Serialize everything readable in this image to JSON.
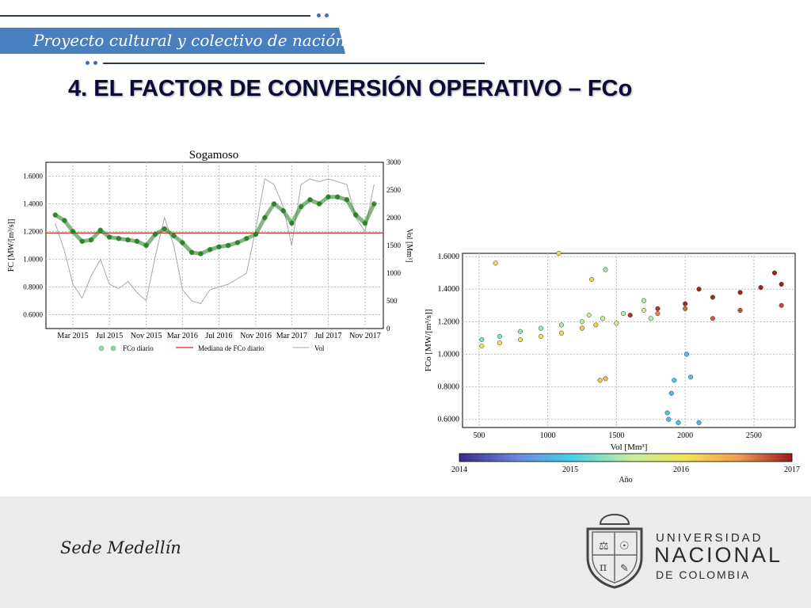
{
  "header": {
    "banner_text": "Proyecto cultural y colectivo de nación",
    "title": "4. EL FACTOR DE CONVERSIÓN OPERATIVO – FCo"
  },
  "footer": {
    "sede": "Sede Medellín",
    "university_line1": "UNIVERSIDAD",
    "university_line2": "NACIONAL",
    "university_line3": "DE COLOMBIA"
  },
  "colors": {
    "banner": "#4a7fbf",
    "title": "#0b0b3a",
    "fco_points": "#1f7a1f",
    "median_line": "#d62020",
    "vol_line": "#a8a8a8"
  },
  "chart_data": [
    {
      "type": "line",
      "title": "Sogamoso",
      "ylabel": "FC [MW/[m³/s]]",
      "y2label": "Vol [Mm³]",
      "ylim": [
        0.5,
        1.7
      ],
      "y2lim": [
        0,
        3000
      ],
      "yticks": [
        "0.6000",
        "0.8000",
        "1.0000",
        "1.2000",
        "1.4000",
        "1.6000"
      ],
      "y2ticks": [
        "0",
        "500",
        "1000",
        "1500",
        "2000",
        "2500",
        "3000"
      ],
      "xticks": [
        "Mar 2015",
        "Jul 2015",
        "Nov 2015",
        "Mar 2016",
        "Jul 2016",
        "Nov 2016",
        "Mar 2017",
        "Jul 2017",
        "Nov 2017"
      ],
      "x_start": "2014-12",
      "x_end": "2018-01",
      "legend": [
        "FCo diario",
        "Mediana de FCo diario",
        "Vol"
      ],
      "legend_position": "bottom",
      "grid": true,
      "median": 1.19,
      "series": [
        {
          "name": "FCo diario",
          "x": [
            "2015-01",
            "2015-02",
            "2015-03",
            "2015-04",
            "2015-05",
            "2015-06",
            "2015-07",
            "2015-08",
            "2015-09",
            "2015-10",
            "2015-11",
            "2015-12",
            "2016-01",
            "2016-02",
            "2016-03",
            "2016-04",
            "2016-05",
            "2016-06",
            "2016-07",
            "2016-08",
            "2016-09",
            "2016-10",
            "2016-11",
            "2016-12",
            "2017-01",
            "2017-02",
            "2017-03",
            "2017-04",
            "2017-05",
            "2017-06",
            "2017-07",
            "2017-08",
            "2017-09",
            "2017-10",
            "2017-11",
            "2017-12"
          ],
          "values": [
            1.32,
            1.28,
            1.2,
            1.13,
            1.14,
            1.21,
            1.16,
            1.15,
            1.14,
            1.13,
            1.1,
            1.18,
            1.22,
            1.17,
            1.12,
            1.05,
            1.04,
            1.07,
            1.09,
            1.1,
            1.12,
            1.15,
            1.18,
            1.3,
            1.4,
            1.35,
            1.26,
            1.38,
            1.43,
            1.4,
            1.45,
            1.45,
            1.43,
            1.32,
            1.26,
            1.4
          ]
        },
        {
          "name": "Vol",
          "x": [
            "2015-01",
            "2015-02",
            "2015-03",
            "2015-04",
            "2015-05",
            "2015-06",
            "2015-07",
            "2015-08",
            "2015-09",
            "2015-10",
            "2015-11",
            "2015-12",
            "2016-01",
            "2016-02",
            "2016-03",
            "2016-04",
            "2016-05",
            "2016-06",
            "2016-07",
            "2016-08",
            "2016-09",
            "2016-10",
            "2016-11",
            "2016-12",
            "2017-01",
            "2017-02",
            "2017-03",
            "2017-04",
            "2017-05",
            "2017-06",
            "2017-07",
            "2017-08",
            "2017-09",
            "2017-10",
            "2017-11",
            "2017-12"
          ],
          "values": [
            1900,
            1400,
            800,
            550,
            950,
            1250,
            800,
            720,
            850,
            650,
            500,
            1300,
            2000,
            1500,
            700,
            500,
            450,
            700,
            750,
            800,
            900,
            1000,
            1800,
            2700,
            2600,
            2200,
            1500,
            2600,
            2700,
            2650,
            2700,
            2650,
            2600,
            2000,
            1750,
            2600
          ]
        }
      ]
    },
    {
      "type": "scatter",
      "xlabel": "Vol [Mm³]",
      "ylabel": "FCo [MW/[m³/s]]",
      "xlim": [
        380,
        2800
      ],
      "ylim": [
        0.55,
        1.62
      ],
      "xticks": [
        "500",
        "1000",
        "1500",
        "2000",
        "2500"
      ],
      "yticks": [
        "0.6000",
        "0.8000",
        "1.0000",
        "1.2000",
        "1.4000",
        "1.6000"
      ],
      "colorbar_label": "Año",
      "colorbar_ticks": [
        "2014",
        "2015",
        "2016",
        "2017"
      ],
      "grid": true,
      "points": [
        {
          "year": 2014.9,
          "x": 1880,
          "y": 0.6
        },
        {
          "year": 2014.9,
          "x": 1950,
          "y": 0.58
        },
        {
          "year": 2014.9,
          "x": 2010,
          "y": 1.0
        },
        {
          "year": 2014.95,
          "x": 1920,
          "y": 0.84
        },
        {
          "year": 2014.95,
          "x": 2040,
          "y": 0.86
        },
        {
          "year": 2014.8,
          "x": 2100,
          "y": 0.58
        },
        {
          "year": 2014.85,
          "x": 1900,
          "y": 0.76
        },
        {
          "year": 2014.9,
          "x": 1870,
          "y": 0.64
        },
        {
          "year": 2015.3,
          "x": 520,
          "y": 1.09
        },
        {
          "year": 2015.3,
          "x": 650,
          "y": 1.11
        },
        {
          "year": 2015.35,
          "x": 800,
          "y": 1.14
        },
        {
          "year": 2015.4,
          "x": 950,
          "y": 1.16
        },
        {
          "year": 2015.45,
          "x": 1100,
          "y": 1.18
        },
        {
          "year": 2015.5,
          "x": 1250,
          "y": 1.2
        },
        {
          "year": 2015.55,
          "x": 1400,
          "y": 1.22
        },
        {
          "year": 2015.5,
          "x": 1550,
          "y": 1.25
        },
        {
          "year": 2015.6,
          "x": 1700,
          "y": 1.27
        },
        {
          "year": 2015.4,
          "x": 1420,
          "y": 1.52
        },
        {
          "year": 2015.45,
          "x": 1700,
          "y": 1.33
        },
        {
          "year": 2015.5,
          "x": 1750,
          "y": 1.22
        },
        {
          "year": 2015.55,
          "x": 1300,
          "y": 1.24
        },
        {
          "year": 2015.6,
          "x": 1500,
          "y": 1.19
        },
        {
          "year": 2016.0,
          "x": 520,
          "y": 1.05
        },
        {
          "year": 2016.0,
          "x": 650,
          "y": 1.07
        },
        {
          "year": 2016.05,
          "x": 800,
          "y": 1.09
        },
        {
          "year": 2016.1,
          "x": 950,
          "y": 1.11
        },
        {
          "year": 2016.15,
          "x": 1100,
          "y": 1.13
        },
        {
          "year": 2016.2,
          "x": 1250,
          "y": 1.16
        },
        {
          "year": 2016.25,
          "x": 1380,
          "y": 0.84
        },
        {
          "year": 2016.3,
          "x": 1420,
          "y": 0.85
        },
        {
          "year": 2016.1,
          "x": 620,
          "y": 1.56
        },
        {
          "year": 2016.05,
          "x": 1080,
          "y": 1.62
        },
        {
          "year": 2016.15,
          "x": 1320,
          "y": 1.46
        },
        {
          "year": 2016.2,
          "x": 1350,
          "y": 1.18
        },
        {
          "year": 2016.6,
          "x": 1800,
          "y": 1.25
        },
        {
          "year": 2016.7,
          "x": 2000,
          "y": 1.28
        },
        {
          "year": 2016.75,
          "x": 2200,
          "y": 1.22
        },
        {
          "year": 2016.8,
          "x": 2400,
          "y": 1.27
        },
        {
          "year": 2016.8,
          "x": 2700,
          "y": 1.3
        },
        {
          "year": 2016.9,
          "x": 1600,
          "y": 1.24
        },
        {
          "year": 2016.9,
          "x": 1800,
          "y": 1.28
        },
        {
          "year": 2016.95,
          "x": 2000,
          "y": 1.31
        },
        {
          "year": 2016.95,
          "x": 2200,
          "y": 1.35
        },
        {
          "year": 2016.98,
          "x": 2400,
          "y": 1.38
        },
        {
          "year": 2016.99,
          "x": 2550,
          "y": 1.41
        },
        {
          "year": 2016.99,
          "x": 2700,
          "y": 1.43
        },
        {
          "year": 2016.97,
          "x": 2650,
          "y": 1.5
        },
        {
          "year": 2016.96,
          "x": 2100,
          "y": 1.4
        }
      ]
    }
  ]
}
